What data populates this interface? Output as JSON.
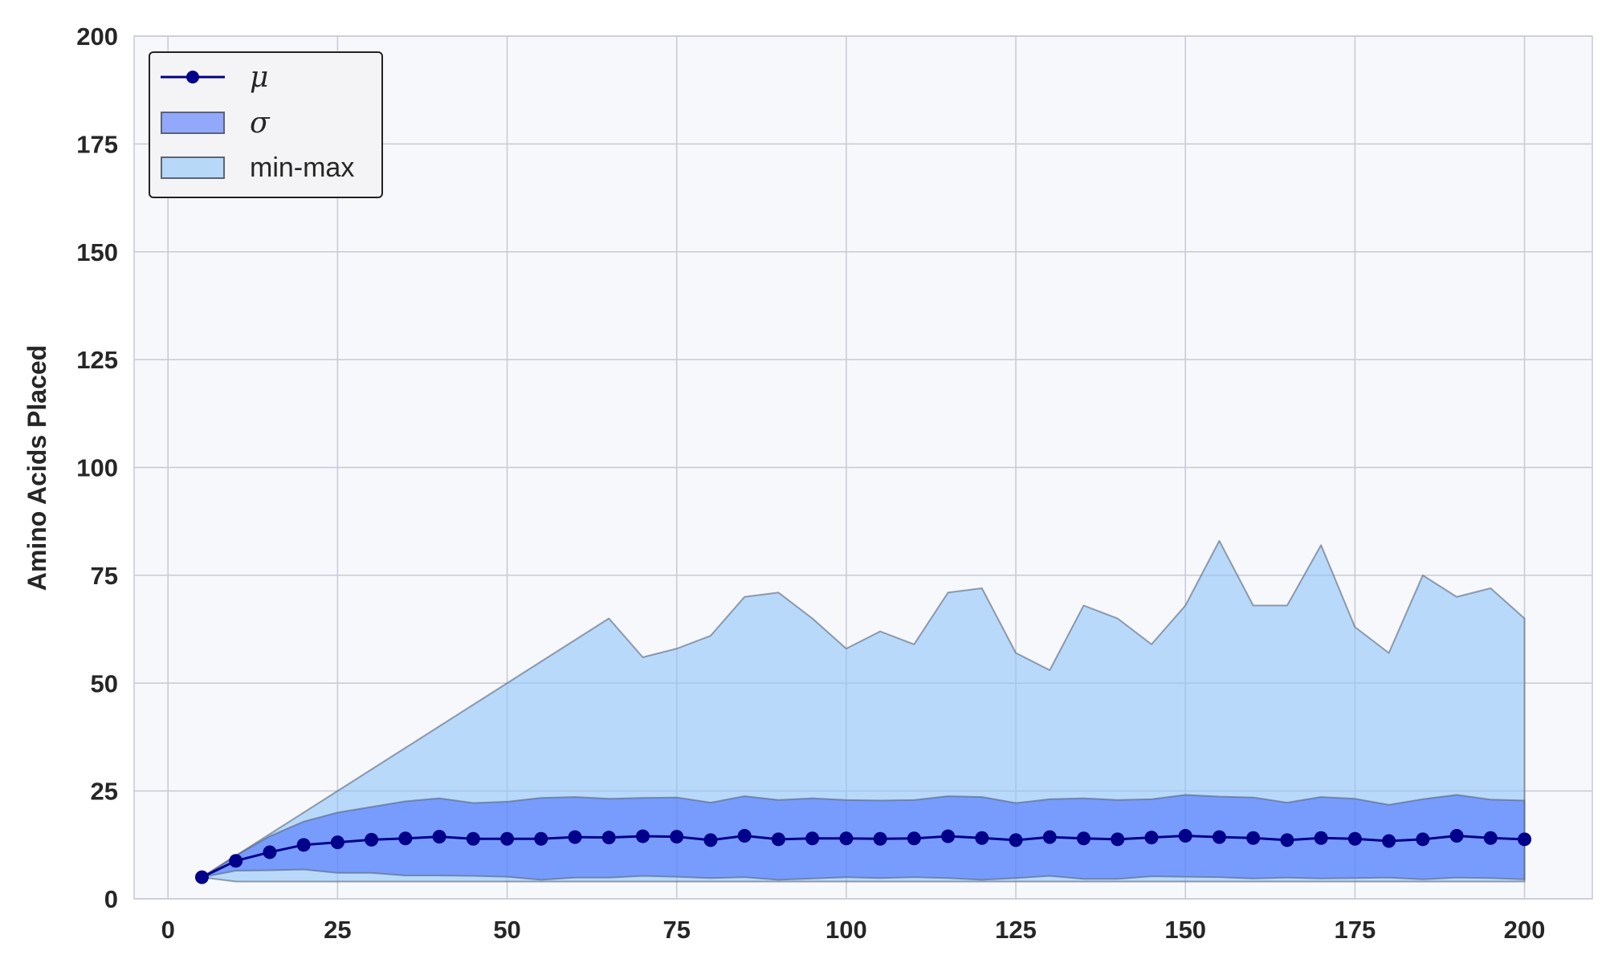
{
  "chart_data": {
    "type": "line",
    "title": "",
    "xlabel": "",
    "ylabel": "Amino Acids Placed",
    "xlim": [
      -5,
      210
    ],
    "ylim": [
      0,
      200
    ],
    "xticks": [
      0,
      25,
      50,
      75,
      100,
      125,
      150,
      175,
      200
    ],
    "yticks": [
      0,
      25,
      50,
      75,
      100,
      125,
      150,
      175,
      200
    ],
    "grid": true,
    "legend_position": "upper left",
    "x": [
      5,
      10,
      15,
      20,
      25,
      30,
      35,
      40,
      45,
      50,
      55,
      60,
      65,
      70,
      75,
      80,
      85,
      90,
      95,
      100,
      105,
      110,
      115,
      120,
      125,
      130,
      135,
      140,
      145,
      150,
      155,
      160,
      165,
      170,
      175,
      180,
      185,
      190,
      195,
      200
    ],
    "series": [
      {
        "name": "μ",
        "kind": "line-markers",
        "color": "#00008B",
        "values": [
          5,
          8.8,
          10.8,
          12.5,
          13.1,
          13.7,
          14,
          14.4,
          13.9,
          13.9,
          13.9,
          14.3,
          14.2,
          14.5,
          14.4,
          13.6,
          14.6,
          13.8,
          14,
          14,
          13.9,
          14,
          14.5,
          14.1,
          13.6,
          14.3,
          14,
          13.8,
          14.2,
          14.6,
          14.3,
          14.1,
          13.6,
          14.1,
          13.9,
          13.4,
          13.8,
          14.6,
          14.1,
          13.8
        ]
      },
      {
        "name": "σ",
        "kind": "band",
        "color": "#4169FF",
        "lower": [
          5,
          6.5,
          6.6,
          6.8,
          6,
          6,
          5.4,
          5.4,
          5.3,
          5.1,
          4.4,
          4.9,
          4.9,
          5.3,
          5.1,
          4.8,
          5,
          4.4,
          4.7,
          5,
          4.8,
          5,
          4.8,
          4.4,
          4.8,
          5.3,
          4.6,
          4.6,
          5.2,
          5.1,
          5,
          4.7,
          4.9,
          4.7,
          4.8,
          4.9,
          4.5,
          4.9,
          4.8,
          4.5
        ],
        "upper": [
          5,
          10,
          14.5,
          17.9,
          20,
          21.3,
          22.6,
          23.3,
          22.2,
          22.5,
          23.4,
          23.6,
          23.2,
          23.4,
          23.5,
          22.3,
          23.8,
          22.9,
          23.3,
          22.9,
          22.8,
          22.9,
          23.8,
          23.6,
          22.2,
          23.1,
          23.3,
          22.9,
          23.1,
          24.1,
          23.7,
          23.5,
          22.3,
          23.6,
          23.2,
          21.8,
          23.1,
          24.1,
          23,
          22.8
        ]
      },
      {
        "name": "min-max",
        "kind": "band",
        "color": "#8EC4F8",
        "lower": [
          5,
          4,
          4,
          4,
          4,
          4,
          4,
          4,
          4,
          4,
          4,
          4,
          4,
          4,
          4,
          4,
          4,
          4,
          4,
          4,
          4,
          4,
          4,
          4,
          4,
          4,
          4,
          4,
          4,
          4,
          4,
          4,
          4,
          4,
          4,
          4,
          4,
          4,
          4,
          4
        ],
        "upper": [
          5,
          10,
          15,
          20,
          25,
          30,
          35,
          40,
          45,
          50,
          55,
          60,
          65,
          56,
          58,
          61,
          70,
          71,
          65,
          58,
          62,
          59,
          71,
          72,
          57,
          53,
          68,
          65,
          59,
          68,
          83,
          68,
          68,
          82,
          63,
          57,
          75,
          70,
          72,
          65
        ]
      }
    ]
  },
  "legend": {
    "entries": [
      "μ",
      "σ",
      "min-max"
    ]
  },
  "colors": {
    "plot_background": "#F7F8FC",
    "grid": "#C8C9D2",
    "mu_line": "#00008B",
    "sigma_fill": "#4169FF",
    "minmax_fill": "#8EC4F8",
    "band_edge": "#5A6478"
  }
}
